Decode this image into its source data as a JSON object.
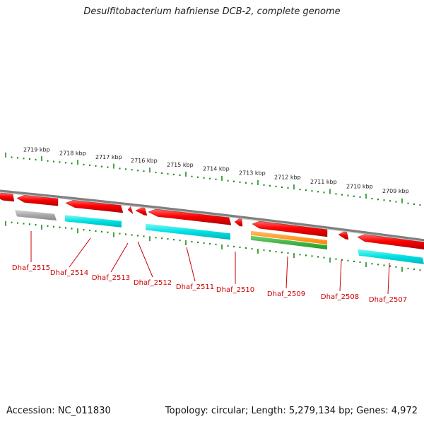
{
  "title": "Desulfitobacterium hafniense DCB-2, complete genome",
  "colors": {
    "background": "#ffffff",
    "backbone": "#7f7f7f",
    "tick": "#1e8c1e",
    "gene_forward": "#ff0000",
    "cds_grey": "#a8a8a8",
    "cds_cyan": "#00e0e0",
    "cds_orange": "#ff8c00",
    "cds_green": "#2eaa2e",
    "label": "#cc0000",
    "kbp_text": "#222222"
  },
  "kbp_labels": [
    "2719 kbp",
    "2718 kbp",
    "2717 kbp",
    "2716 kbp",
    "2715 kbp",
    "2714 kbp",
    "2713 kbp",
    "2712 kbp",
    "2711 kbp",
    "2710 kbp",
    "2709 kbp"
  ],
  "genes": [
    {
      "locus": "Dhaf_2515",
      "strand": "reverse",
      "feature": "grey"
    },
    {
      "locus": "Dhaf_2514",
      "strand": "reverse",
      "feature": "cyan"
    },
    {
      "locus": "Dhaf_2513",
      "strand": "reverse",
      "feature": "none"
    },
    {
      "locus": "Dhaf_2512",
      "strand": "reverse",
      "feature": "none"
    },
    {
      "locus": "Dhaf_2511",
      "strand": "reverse",
      "feature": "cyan"
    },
    {
      "locus": "Dhaf_2510",
      "strand": "reverse",
      "feature": "none"
    },
    {
      "locus": "Dhaf_2509",
      "strand": "reverse",
      "feature": "orange+green"
    },
    {
      "locus": "Dhaf_2508",
      "strand": "reverse",
      "feature": "none"
    },
    {
      "locus": "Dhaf_2507",
      "strand": "reverse",
      "feature": "cyan"
    }
  ],
  "footer": {
    "accession": "Accession: NC_011830",
    "topology": "Topology: circular; Length: 5,279,134 bp; Genes: 4,972"
  }
}
